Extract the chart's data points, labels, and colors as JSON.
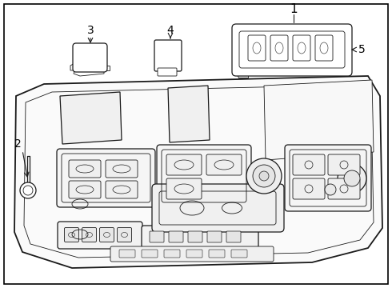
{
  "bg_color": "#ffffff",
  "border_color": "#000000",
  "line_color": "#1a1a1a",
  "label_color": "#000000",
  "figsize": [
    4.9,
    3.6
  ],
  "dpi": 100
}
